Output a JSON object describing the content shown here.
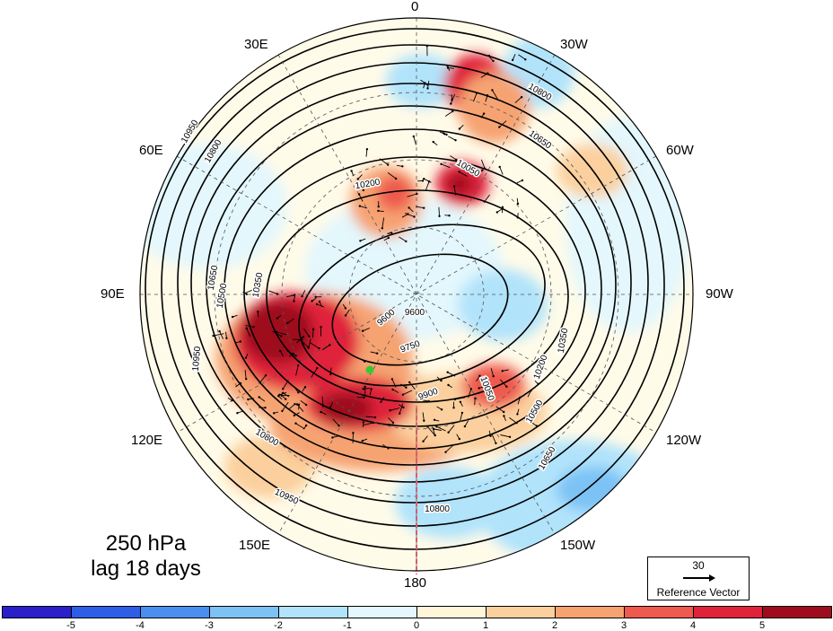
{
  "title": {
    "line1": "250 hPa",
    "line2": "lag 18 days"
  },
  "longitude_labels": [
    "0",
    "30W",
    "60W",
    "90W",
    "120W",
    "150W",
    "180",
    "150E",
    "120E",
    "90E",
    "60E",
    "30E"
  ],
  "contour_labels": [
    "9600",
    "9600",
    "9750",
    "9900",
    "10050",
    "10050",
    "10200",
    "10200",
    "10350",
    "10350",
    "10500",
    "10500",
    "10650",
    "10650",
    "10650",
    "10800",
    "10800",
    "10800",
    "10950",
    "10950",
    "10950",
    "10800"
  ],
  "reference_vector": {
    "magnitude": "30",
    "label": "Reference Vector"
  },
  "colorbar": {
    "labels": [
      "-5",
      "-4",
      "-3",
      "-2",
      "-1",
      "0",
      "1",
      "2",
      "3",
      "4",
      "5"
    ],
    "colors": [
      "#2a1fc9",
      "#2f5ee6",
      "#4a8ff0",
      "#7cc2f5",
      "#b1e3fb",
      "#e3f7fd",
      "#fff5d9",
      "#fbd09e",
      "#f6a372",
      "#ee5a4d",
      "#e0223a",
      "#9e0c1d"
    ]
  },
  "marker": {
    "color": "#33cc33"
  }
}
